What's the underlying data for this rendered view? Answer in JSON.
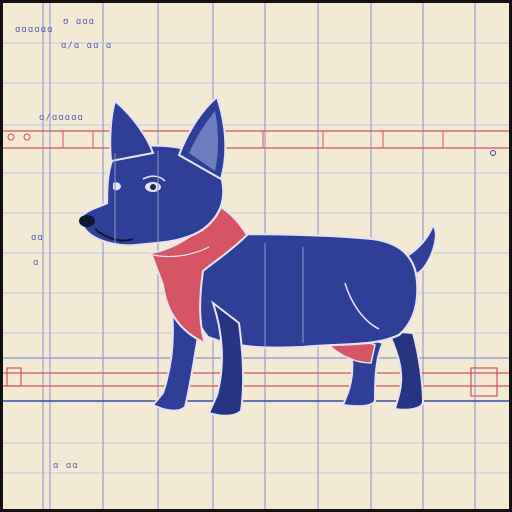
{
  "image": {
    "kind": "blueprint-style illustration",
    "subject_icon": "dog-illustration",
    "palette": {
      "paper": "#f3ead6",
      "grid_line": "#8e94c8",
      "grid_minor": "#c6c6dc",
      "accent_red": "#d0505c",
      "dog_blue": "#2f3f97",
      "dog_blue_dark": "#263482",
      "outline_light": "#e7e3f0",
      "inner_ear": "#6c7dbf",
      "harness_red": "#d65564"
    },
    "scribbles": [
      "ʊ ɑɑɑ",
      "ɑ/ɑ ɑɑ ɑ",
      "ɑ/ɑɑɑɑɑ",
      "ɑɑɑɑɑɑ",
      "ɑɑ",
      "ɑ",
      "ɑ ɑɑ"
    ]
  }
}
